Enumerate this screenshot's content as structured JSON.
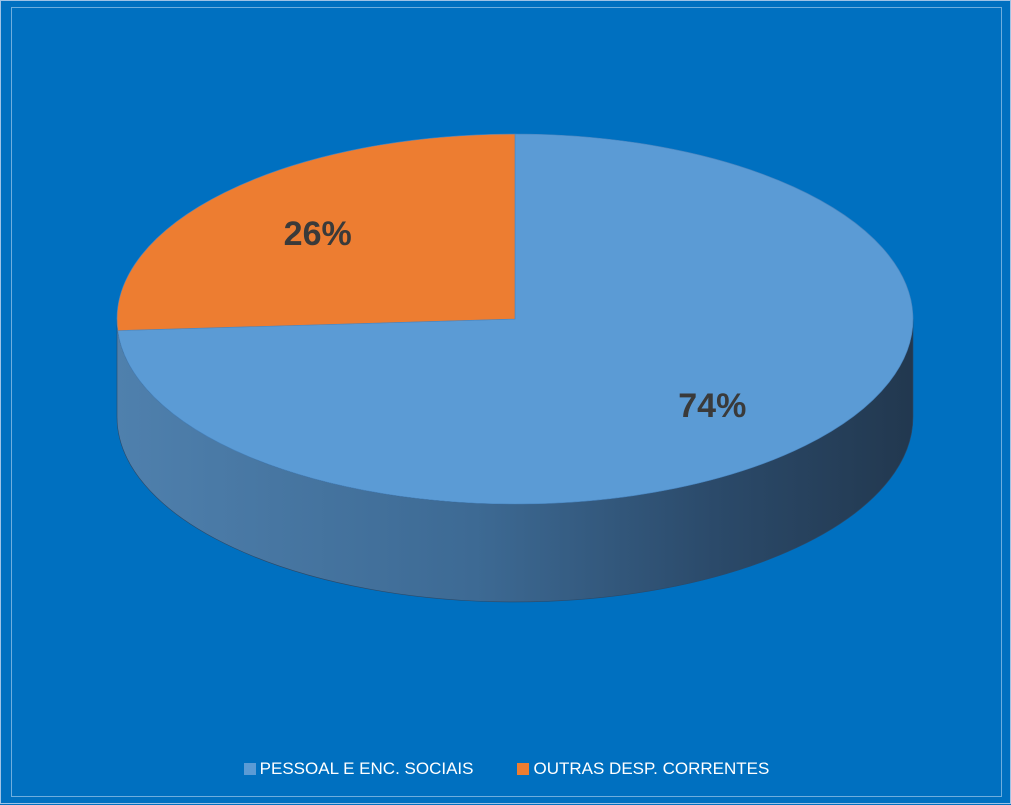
{
  "colors": {
    "background": "#0070c0",
    "border": "#9fc3e6",
    "label_text": "#3a3a3a",
    "legend_text": "#ffffff"
  },
  "chart_data": {
    "type": "pie",
    "style": "3d",
    "title": "",
    "categories": [
      "PESSOAL E ENC. SOCIAIS",
      "OUTRAS DESP. CORRENTES"
    ],
    "values": [
      74,
      26
    ],
    "data_labels": [
      "74%",
      "26%"
    ],
    "colors": [
      "#5b9bd5",
      "#ed7d31"
    ],
    "legend": {
      "position": "bottom",
      "items": [
        "PESSOAL E ENC. SOCIAIS",
        "OUTRAS DESP. CORRENTES"
      ]
    }
  }
}
